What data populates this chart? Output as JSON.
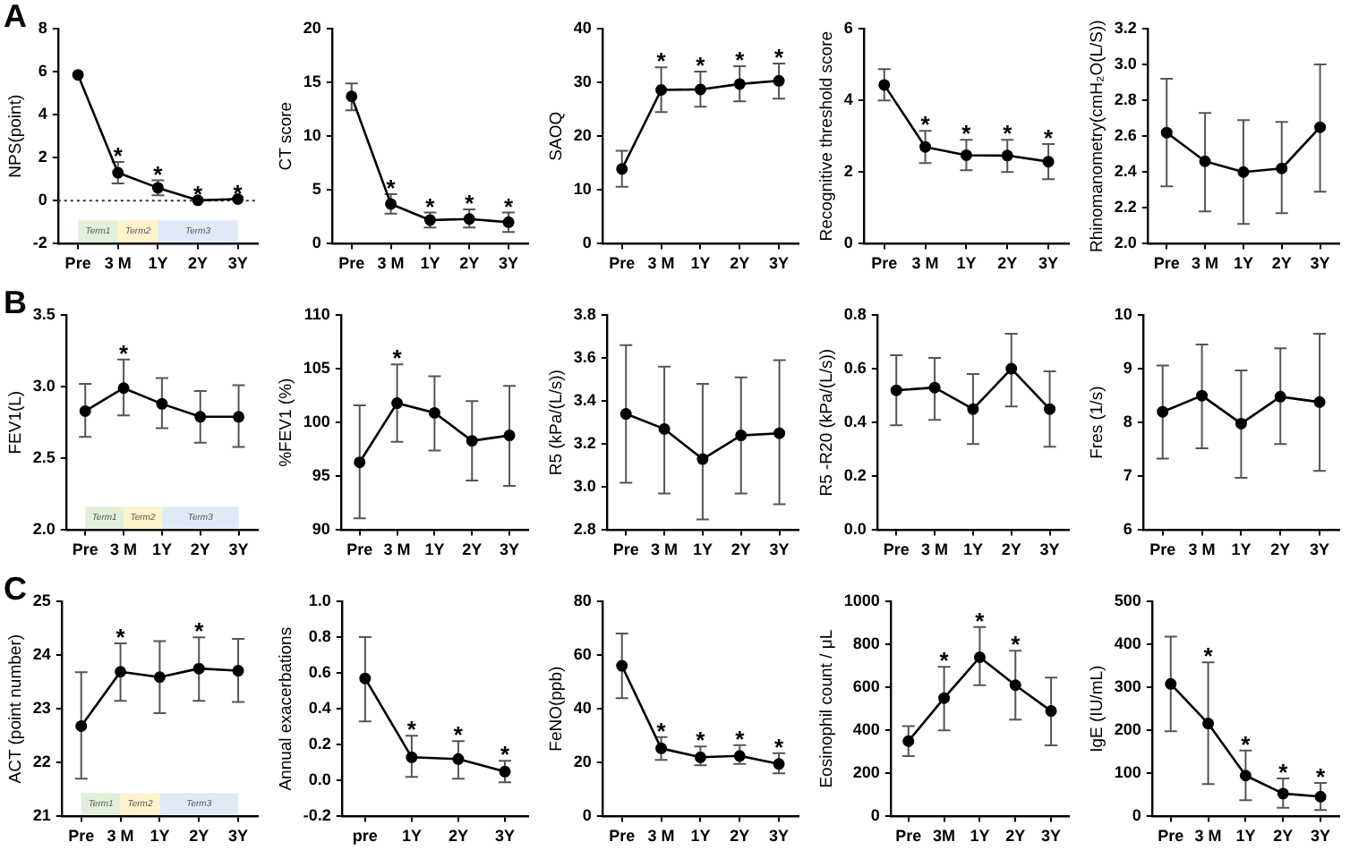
{
  "chart_data": [
    {
      "type": "line",
      "ylabel": "NPS(point)",
      "categories": [
        "Pre",
        "3 M",
        "1Y",
        "2Y",
        "3Y"
      ],
      "values": [
        5.85,
        1.3,
        0.6,
        0.02,
        0.08
      ],
      "errors": [
        null,
        [
          0.8,
          1.8
        ],
        [
          0.25,
          0.95
        ],
        null,
        null
      ],
      "color": "#000000",
      "ylim": [
        -2,
        8
      ],
      "yticks": [
        -2,
        0,
        2,
        4,
        6,
        8
      ],
      "grid": false,
      "legend": false,
      "marker": "circle",
      "line_style": "solid",
      "ref_lines": [
        {
          "axis": "y",
          "value": 0,
          "line_style": "dotted",
          "color": "#333333"
        }
      ],
      "bands": [
        {
          "axis": "x",
          "from": "Pre",
          "to": "3 M",
          "label": "Term1",
          "color": "#e2f0d9"
        },
        {
          "axis": "x",
          "from": "3 M",
          "to": "1Y",
          "label": "Term2",
          "color": "#fff2cc"
        },
        {
          "axis": "x",
          "from": "1Y",
          "to": "3Y",
          "label": "Term3",
          "color": "#deebf7"
        }
      ],
      "annotations": [
        "A",
        {
          "text": "*",
          "x": "3 M",
          "y": 1.8
        },
        {
          "text": "*",
          "x": "1Y",
          "y": 0.95
        },
        {
          "text": "*",
          "x": "2Y",
          "y": 0.02
        },
        {
          "text": "*",
          "x": "3Y",
          "y": 0.08
        }
      ]
    },
    {
      "type": "line",
      "ylabel": "CT score",
      "categories": [
        "Pre",
        "3 M",
        "1Y",
        "2Y",
        "3Y"
      ],
      "values": [
        13.7,
        3.7,
        2.2,
        2.3,
        2.0
      ],
      "errors": [
        [
          12.4,
          14.9
        ],
        [
          2.8,
          4.6
        ],
        [
          1.5,
          2.9
        ],
        [
          1.5,
          3.2
        ],
        [
          1.1,
          2.9
        ]
      ],
      "color": "#000000",
      "ylim": [
        0,
        20
      ],
      "yticks": [
        0,
        5,
        10,
        15,
        20
      ],
      "grid": false,
      "legend": false,
      "marker": "circle",
      "line_style": "solid",
      "annotations": [
        {
          "text": "*",
          "x": "3 M",
          "y": 4.6
        },
        {
          "text": "*",
          "x": "1Y",
          "y": 2.9
        },
        {
          "text": "*",
          "x": "2Y",
          "y": 3.2
        },
        {
          "text": "*",
          "x": "3Y",
          "y": 2.9
        }
      ]
    },
    {
      "type": "line",
      "ylabel": "SAOQ",
      "categories": [
        "Pre",
        "3 M",
        "1Y",
        "2Y",
        "3Y"
      ],
      "values": [
        13.9,
        28.6,
        28.7,
        29.7,
        30.3
      ],
      "errors": [
        [
          10.6,
          17.3
        ],
        [
          24.5,
          32.8
        ],
        [
          25.5,
          32.0
        ],
        [
          26.5,
          33.0
        ],
        [
          27.0,
          33.5
        ]
      ],
      "color": "#000000",
      "ylim": [
        0,
        40
      ],
      "yticks": [
        0,
        10,
        20,
        30,
        40
      ],
      "grid": false,
      "legend": false,
      "marker": "circle",
      "line_style": "solid",
      "annotations": [
        {
          "text": "*",
          "x": "3 M",
          "y": 32.8
        },
        {
          "text": "*",
          "x": "1Y",
          "y": 32.0
        },
        {
          "text": "*",
          "x": "2Y",
          "y": 33.0
        },
        {
          "text": "*",
          "x": "3Y",
          "y": 33.5
        }
      ]
    },
    {
      "type": "line",
      "ylabel": "Recognitive threshold score",
      "categories": [
        "Pre",
        "3 M",
        "1Y",
        "2Y",
        "3Y"
      ],
      "values": [
        4.43,
        2.7,
        2.47,
        2.46,
        2.29
      ],
      "errors": [
        [
          4.0,
          4.87
        ],
        [
          2.25,
          3.15
        ],
        [
          2.05,
          2.9
        ],
        [
          2.0,
          2.9
        ],
        [
          1.8,
          2.78
        ]
      ],
      "color": "#000000",
      "ylim": [
        0,
        6
      ],
      "yticks": [
        0,
        2,
        4,
        6
      ],
      "grid": false,
      "legend": false,
      "marker": "circle",
      "line_style": "solid",
      "annotations": [
        {
          "text": "*",
          "x": "3 M",
          "y": 3.15
        },
        {
          "text": "*",
          "x": "1Y",
          "y": 2.9
        },
        {
          "text": "*",
          "x": "2Y",
          "y": 2.9
        },
        {
          "text": "*",
          "x": "3Y",
          "y": 2.78
        }
      ]
    },
    {
      "type": "line",
      "ylabel": "Rhinomanometry(cmH₂O(L/S))",
      "categories": [
        "Pre",
        "3 M",
        "1Y",
        "2Y",
        "3Y"
      ],
      "values": [
        2.62,
        2.46,
        2.4,
        2.42,
        2.65
      ],
      "errors": [
        [
          2.32,
          2.92
        ],
        [
          2.18,
          2.73
        ],
        [
          2.11,
          2.69
        ],
        [
          2.17,
          2.68
        ],
        [
          2.29,
          3.0
        ]
      ],
      "color": "#000000",
      "ylim": [
        2.0,
        3.2
      ],
      "yticks": [
        {
          "value": 2,
          "label": "2.0"
        },
        2.2,
        2.4,
        2.6,
        2.8,
        {
          "value": 3,
          "label": "3.0"
        },
        3.2
      ],
      "grid": false,
      "legend": false,
      "marker": "circle",
      "line_style": "solid"
    },
    {
      "type": "line",
      "ylabel": "FEV1(L)",
      "categories": [
        "Pre",
        "3 M",
        "1Y",
        "2Y",
        "3Y"
      ],
      "values": [
        2.83,
        2.99,
        2.88,
        2.79,
        2.79
      ],
      "errors": [
        [
          2.65,
          3.02
        ],
        [
          2.8,
          3.19
        ],
        [
          2.71,
          3.06
        ],
        [
          2.61,
          2.97
        ],
        [
          2.58,
          3.01
        ]
      ],
      "color": "#000000",
      "ylim": [
        2.0,
        3.5
      ],
      "yticks": [
        {
          "value": 2,
          "label": "2.0"
        },
        2.5,
        {
          "value": 3,
          "label": "3.0"
        },
        3.5
      ],
      "grid": false,
      "legend": false,
      "marker": "circle",
      "line_style": "solid",
      "bands": [
        {
          "axis": "x",
          "from": "Pre",
          "to": "3 M",
          "label": "Term1",
          "color": "#e2f0d9"
        },
        {
          "axis": "x",
          "from": "3 M",
          "to": "1Y",
          "label": "Term2",
          "color": "#fff2cc"
        },
        {
          "axis": "x",
          "from": "1Y",
          "to": "3Y",
          "label": "Term3",
          "color": "#deebf7"
        }
      ],
      "annotations": [
        "B",
        {
          "text": "*",
          "x": "3 M",
          "y": 3.19
        }
      ]
    },
    {
      "type": "line",
      "ylabel": "%FEV1 (%)",
      "categories": [
        "Pre",
        "3 M",
        "1Y",
        "2Y",
        "3Y"
      ],
      "values": [
        96.3,
        101.8,
        100.9,
        98.3,
        98.8
      ],
      "errors": [
        [
          91.1,
          101.6
        ],
        [
          98.2,
          105.4
        ],
        [
          97.4,
          104.3
        ],
        [
          94.6,
          102.0
        ],
        [
          94.1,
          103.4
        ]
      ],
      "color": "#000000",
      "ylim": [
        90,
        110
      ],
      "yticks": [
        90,
        95,
        100,
        105,
        110
      ],
      "grid": false,
      "legend": false,
      "marker": "circle",
      "line_style": "solid",
      "annotations": [
        {
          "text": "*",
          "x": "3 M",
          "y": 105.4
        }
      ]
    },
    {
      "type": "line",
      "ylabel": "R5 (kPa/(L/s))",
      "categories": [
        "Pre",
        "3 M",
        "1Y",
        "2Y",
        "3Y"
      ],
      "values": [
        3.34,
        3.27,
        3.13,
        3.24,
        3.25
      ],
      "errors": [
        [
          3.02,
          3.66
        ],
        [
          2.97,
          3.56
        ],
        [
          2.85,
          3.48
        ],
        [
          2.97,
          3.51
        ],
        [
          2.92,
          3.59
        ]
      ],
      "color": "#000000",
      "ylim": [
        2.8,
        3.8
      ],
      "yticks": [
        2.8,
        {
          "value": 3,
          "label": "3.0"
        },
        3.2,
        3.4,
        3.6,
        3.8
      ],
      "grid": false,
      "legend": false,
      "marker": "circle",
      "line_style": "solid"
    },
    {
      "type": "line",
      "ylabel": "R5 -R20 (kPa/(L/s))",
      "categories": [
        "Pre",
        "3 M",
        "1Y",
        "2Y",
        "3Y"
      ],
      "values": [
        0.52,
        0.53,
        0.45,
        0.6,
        0.45
      ],
      "errors": [
        [
          0.39,
          0.65
        ],
        [
          0.41,
          0.64
        ],
        [
          0.32,
          0.58
        ],
        [
          0.46,
          0.73
        ],
        [
          0.31,
          0.59
        ]
      ],
      "color": "#000000",
      "ylim": [
        0,
        0.8
      ],
      "yticks": [
        {
          "value": 0,
          "label": "0.0"
        },
        0.2,
        0.4,
        0.6,
        0.8
      ],
      "grid": false,
      "legend": false,
      "marker": "circle",
      "line_style": "solid"
    },
    {
      "type": "line",
      "ylabel": "Fres (1/s)",
      "categories": [
        "Pre",
        "3 M",
        "1Y",
        "2Y",
        "3Y"
      ],
      "values": [
        8.2,
        8.5,
        7.98,
        8.48,
        8.38
      ],
      "errors": [
        [
          7.33,
          9.06
        ],
        [
          7.52,
          9.45
        ],
        [
          6.97,
          8.97
        ],
        [
          7.6,
          9.38
        ],
        [
          7.1,
          9.65
        ]
      ],
      "color": "#000000",
      "ylim": [
        6,
        10
      ],
      "yticks": [
        6,
        7,
        8,
        9,
        10
      ],
      "grid": false,
      "legend": false,
      "marker": "circle",
      "line_style": "solid"
    },
    {
      "type": "line",
      "ylabel": "ACT (point number)",
      "categories": [
        "Pre",
        "3 M",
        "1Y",
        "2Y",
        "3Y"
      ],
      "values": [
        22.68,
        23.69,
        23.59,
        23.75,
        23.71
      ],
      "errors": [
        [
          21.7,
          23.68
        ],
        [
          23.15,
          24.22
        ],
        [
          22.92,
          24.26
        ],
        [
          23.15,
          24.33
        ],
        [
          23.13,
          24.3
        ]
      ],
      "color": "#000000",
      "ylim": [
        21,
        25
      ],
      "yticks": [
        21,
        22,
        23,
        24,
        25
      ],
      "grid": false,
      "legend": false,
      "marker": "circle",
      "line_style": "solid",
      "bands": [
        {
          "axis": "x",
          "from": "Pre",
          "to": "3 M",
          "label": "Term1",
          "color": "#e2f0d9"
        },
        {
          "axis": "x",
          "from": "3 M",
          "to": "1Y",
          "label": "Term2",
          "color": "#fff2cc"
        },
        {
          "axis": "x",
          "from": "1Y",
          "to": "3Y",
          "label": "Term3",
          "color": "#deebf7"
        }
      ],
      "annotations": [
        "C",
        {
          "text": "*",
          "x": "3 M",
          "y": 24.22
        },
        {
          "text": "*",
          "x": "2Y",
          "y": 24.33
        }
      ]
    },
    {
      "type": "line",
      "ylabel": "Annual exacerbations",
      "categories": [
        "pre",
        "1Y",
        "2Y",
        "3Y"
      ],
      "values": [
        0.57,
        0.13,
        0.12,
        0.05
      ],
      "errors": [
        [
          0.33,
          0.8
        ],
        [
          0.02,
          0.25
        ],
        [
          0.01,
          0.22
        ],
        [
          -0.01,
          0.11
        ]
      ],
      "color": "#000000",
      "ylim": [
        -0.2,
        1.0
      ],
      "yticks": [
        -0.2,
        {
          "value": 0,
          "label": "0.0"
        },
        0.2,
        0.4,
        0.6,
        0.8,
        {
          "value": 1,
          "label": "1.0"
        }
      ],
      "grid": false,
      "legend": false,
      "marker": "circle",
      "line_style": "solid",
      "annotations": [
        {
          "text": "*",
          "x": "1Y",
          "y": 0.25
        },
        {
          "text": "*",
          "x": "2Y",
          "y": 0.22
        },
        {
          "text": "*",
          "x": "3Y",
          "y": 0.11
        }
      ]
    },
    {
      "type": "line",
      "ylabel": "FeNO(ppb)",
      "categories": [
        "Pre",
        "3 M",
        "1Y",
        "2Y",
        "3Y"
      ],
      "values": [
        56,
        25.3,
        22.0,
        22.5,
        19.5
      ],
      "errors": [
        [
          44,
          68
        ],
        [
          21,
          29.5
        ],
        [
          19,
          26
        ],
        [
          19.5,
          26.5
        ],
        [
          16,
          23.5
        ]
      ],
      "color": "#000000",
      "ylim": [
        0,
        80
      ],
      "yticks": [
        0,
        20,
        40,
        60,
        80
      ],
      "grid": false,
      "legend": false,
      "marker": "circle",
      "line_style": "solid",
      "annotations": [
        {
          "text": "*",
          "x": "3 M",
          "y": 29.5
        },
        {
          "text": "*",
          "x": "1Y",
          "y": 26
        },
        {
          "text": "*",
          "x": "2Y",
          "y": 26.5
        },
        {
          "text": "*",
          "x": "3Y",
          "y": 23.5
        }
      ]
    },
    {
      "type": "line",
      "ylabel": "Eosinophil count / μL",
      "categories": [
        "Pre",
        "3M",
        "1Y",
        "2Y",
        "3Y"
      ],
      "values": [
        350,
        550,
        740,
        610,
        490
      ],
      "errors": [
        [
          280,
          420
        ],
        [
          400,
          695
        ],
        [
          610,
          880
        ],
        [
          450,
          770
        ],
        [
          330,
          645
        ]
      ],
      "color": "#000000",
      "ylim": [
        0,
        1000
      ],
      "yticks": [
        0,
        200,
        400,
        600,
        800,
        1000
      ],
      "grid": false,
      "legend": false,
      "marker": "circle",
      "line_style": "solid",
      "annotations": [
        {
          "text": "*",
          "x": "3M",
          "y": 695
        },
        {
          "text": "*",
          "x": "1Y",
          "y": 880
        },
        {
          "text": "*",
          "x": "2Y",
          "y": 770
        }
      ]
    },
    {
      "type": "line",
      "ylabel": "IgE (IU/mL)",
      "categories": [
        "Pre",
        "3 M",
        "1Y",
        "2Y",
        "3Y"
      ],
      "values": [
        308,
        216,
        95,
        53,
        46
      ],
      "errors": [
        [
          198,
          418
        ],
        [
          75,
          358
        ],
        [
          38,
          153
        ],
        [
          20,
          88
        ],
        [
          15,
          78
        ]
      ],
      "color": "#000000",
      "ylim": [
        0,
        500
      ],
      "yticks": [
        0,
        100,
        200,
        300,
        400,
        500
      ],
      "grid": false,
      "legend": false,
      "marker": "circle",
      "line_style": "solid",
      "annotations": [
        {
          "text": "*",
          "x": "3 M",
          "y": 358
        },
        {
          "text": "*",
          "x": "1Y",
          "y": 153
        },
        {
          "text": "*",
          "x": "2Y",
          "y": 88
        },
        {
          "text": "*",
          "x": "3Y",
          "y": 78
        }
      ]
    }
  ]
}
